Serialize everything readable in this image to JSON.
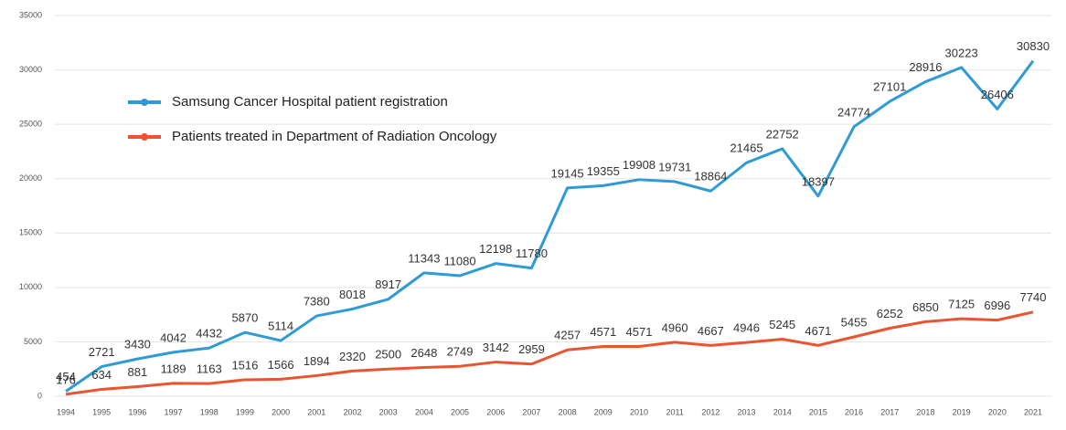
{
  "chart_data": {
    "type": "line",
    "categories": [
      "1994",
      "1995",
      "1996",
      "1997",
      "1998",
      "1999",
      "2000",
      "2001",
      "2002",
      "2003",
      "2004",
      "2005",
      "2006",
      "2007",
      "2008",
      "2009",
      "2010",
      "2011",
      "2012",
      "2013",
      "2014",
      "2015",
      "2016",
      "2017",
      "2018",
      "2019",
      "2020",
      "2021"
    ],
    "series": [
      {
        "name": "Samsung Cancer Hospital patient registration",
        "color": "#2e9ad6",
        "values": [
          454,
          2721,
          3430,
          4042,
          4432,
          5870,
          5114,
          7380,
          8018,
          8917,
          11343,
          11080,
          12198,
          11780,
          19145,
          19355,
          19908,
          19731,
          18864,
          21465,
          22752,
          18397,
          24774,
          27101,
          28916,
          30223,
          26406,
          30830
        ]
      },
      {
        "name": "Patients treated in Department of Radiation Oncology",
        "color": "#e8552f",
        "values": [
          176,
          634,
          881,
          1189,
          1163,
          1516,
          1566,
          1894,
          2320,
          2500,
          2648,
          2749,
          3142,
          2959,
          4257,
          4571,
          4571,
          4960,
          4667,
          4946,
          5245,
          4671,
          5455,
          6252,
          6850,
          7125,
          6996,
          7740
        ]
      }
    ],
    "ylim": [
      0,
      35000
    ],
    "yticks": [
      0,
      5000,
      10000,
      15000,
      20000,
      25000,
      30000,
      35000
    ],
    "grid": true,
    "legend": "upper-left",
    "data_labels": true
  }
}
